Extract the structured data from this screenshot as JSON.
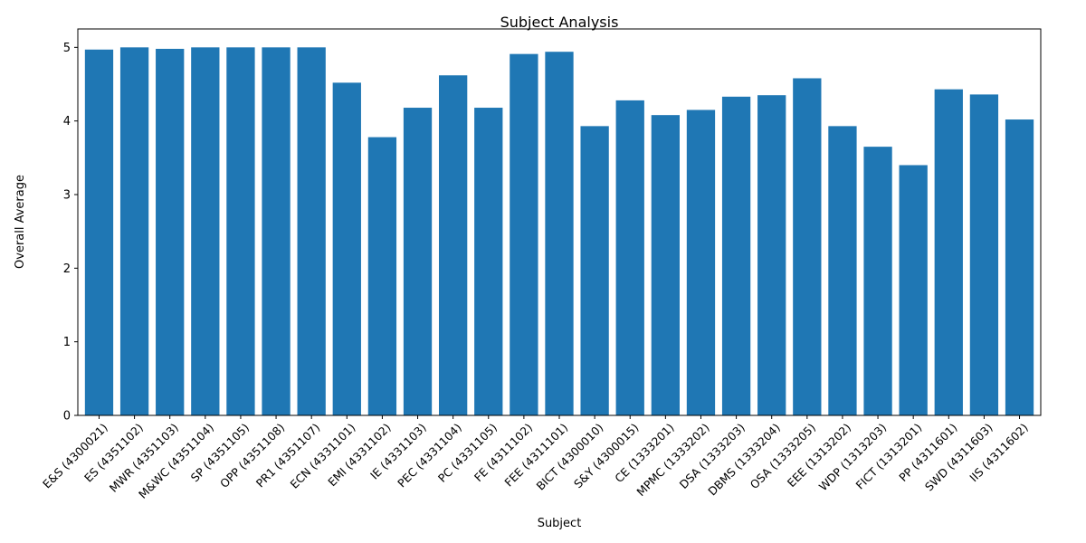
{
  "chart_data": {
    "type": "bar",
    "title": "Subject Analysis",
    "xlabel": "Subject",
    "ylabel": "Overall Average",
    "ylim": [
      0,
      5.25
    ],
    "yticks": [
      0,
      1,
      2,
      3,
      4,
      5
    ],
    "categories": [
      "E&S (4300021)",
      "ES (4351102)",
      "MWR (4351103)",
      "M&WC (4351104)",
      "SP (4351105)",
      "OPP (4351108)",
      "PR1 (4351107)",
      "ECN (4331101)",
      "EMI (4331102)",
      "IE (4331103)",
      "PEC (4331104)",
      "PC (4331105)",
      "FE (4311102)",
      "FEE (4311101)",
      "BICT (4300010)",
      "S&Y (4300015)",
      "CE (1333201)",
      "MPMC (1333202)",
      "DSA (1333203)",
      "DBMS (1333204)",
      "OSA (1333205)",
      "EEE (1313202)",
      "WDP (1313203)",
      "FICT (1313201)",
      "PP (4311601)",
      "SWD (4311603)",
      "IIS (4311602)"
    ],
    "values": [
      4.97,
      5.0,
      4.98,
      5.0,
      5.0,
      5.0,
      5.0,
      4.52,
      3.78,
      4.18,
      4.62,
      4.18,
      4.91,
      4.94,
      3.93,
      4.28,
      4.08,
      4.15,
      4.33,
      4.35,
      4.58,
      3.93,
      3.65,
      3.4,
      4.43,
      4.36,
      4.02
    ],
    "color": "#1f77b4"
  }
}
